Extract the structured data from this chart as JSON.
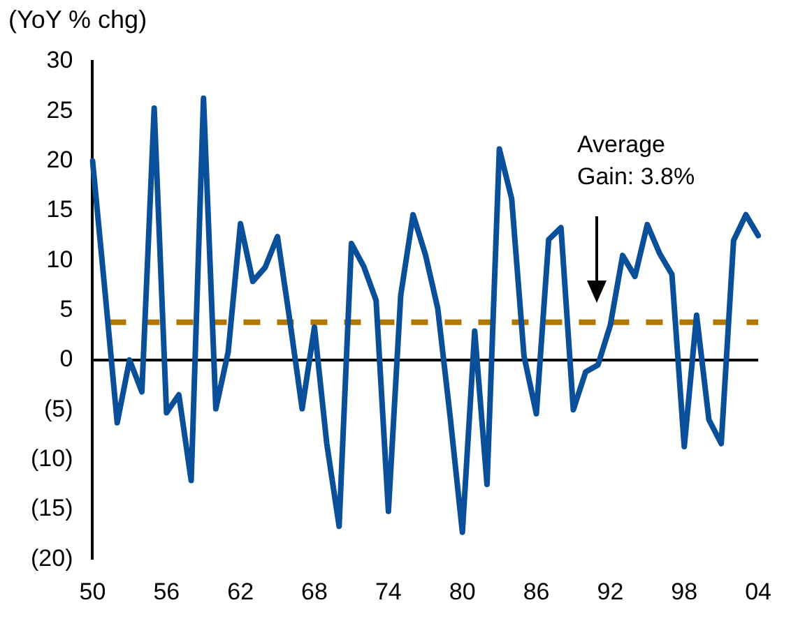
{
  "chart_data": {
    "type": "line",
    "ylabel": "(YoY % chg)",
    "categories": [
      "50",
      null,
      null,
      null,
      null,
      null,
      "56",
      null,
      null,
      null,
      null,
      null,
      "62",
      null,
      null,
      null,
      null,
      null,
      "68",
      null,
      null,
      null,
      null,
      null,
      "74",
      null,
      null,
      null,
      null,
      null,
      "80",
      null,
      null,
      null,
      null,
      null,
      "86",
      null,
      null,
      null,
      null,
      null,
      "92",
      null,
      null,
      null,
      null,
      null,
      "98",
      null,
      null,
      null,
      null,
      null,
      "04"
    ],
    "series": [
      {
        "color": "#0a4f9a",
        "values": [
          20,
          7,
          -6.3,
          0,
          -3.2,
          25.3,
          -5.3,
          -3.5,
          -12.1,
          26.3,
          -4.9,
          0.8,
          13.7,
          7.9,
          9.3,
          12.4,
          4,
          -4.9,
          3.3,
          -8.4,
          -16.7,
          11.7,
          9.4,
          6,
          -15.2,
          6.5,
          14.6,
          10.6,
          5.2,
          -5.6,
          -17.3,
          2.9,
          -12.5,
          21.2,
          16.2,
          0.4,
          -5.4,
          12.1,
          13.3,
          -5,
          -1.2,
          -0.5,
          3.5,
          10.5,
          8.4,
          13.6,
          10.7,
          8.6,
          -8.7,
          4.5,
          -6,
          -8.4,
          12,
          14.6,
          12.5
        ]
      }
    ],
    "ylim": [
      -20,
      30
    ],
    "yticks": [
      {
        "value": -20,
        "label": "(20)"
      },
      {
        "value": -15,
        "label": "(15)"
      },
      {
        "value": -10,
        "label": "(10)"
      },
      {
        "value": -5,
        "label": "(5)"
      },
      0,
      5,
      10,
      15,
      20,
      25,
      30
    ],
    "ref_lines": [
      {
        "axis": "y",
        "value": 0,
        "color": "#000000",
        "line_style": "solid"
      },
      {
        "axis": "y",
        "value": 3.8,
        "color": "#b07800",
        "line_style": "dashed"
      }
    ],
    "annotations": [
      "Average Gain: 3.8%"
    ],
    "grid": false,
    "legend": false,
    "marker": "none",
    "line_style": "solid"
  }
}
